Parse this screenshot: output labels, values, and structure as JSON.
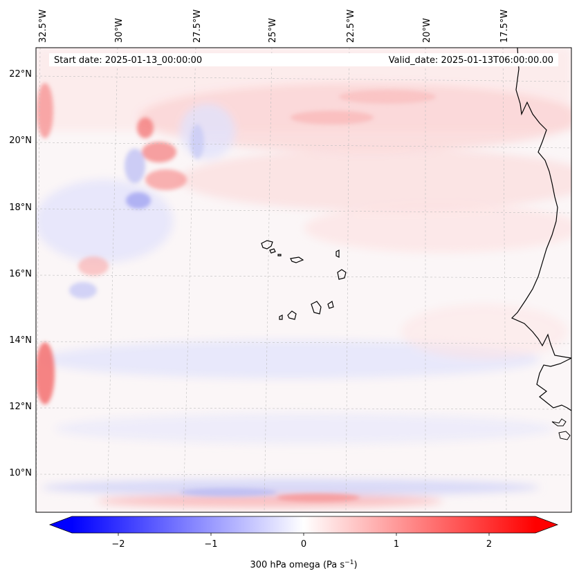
{
  "header": {
    "start_date": "Start date: 2025-01-13_00:00:00",
    "valid_date": "Valid_date: 2025-01-13T06:00:00.00"
  },
  "map": {
    "lon_labels": [
      "32.5°W",
      "30°W",
      "27.5°W",
      "25°W",
      "22.5°W",
      "20°W",
      "17.5°W"
    ],
    "lat_labels": [
      "22°N",
      "20°N",
      "18°N",
      "16°N",
      "14°N",
      "12°N",
      "10°N"
    ],
    "coastline": true,
    "gridlines": true
  },
  "colorbar": {
    "ticks": [
      "−2",
      "−1",
      "0",
      "1",
      "2"
    ],
    "label": "300 hPa omega (Pa s",
    "label_sup": "−1",
    "label_end": ")",
    "colormap": "bwr",
    "min_color": "#0000ff",
    "mid_color": "#ffffff",
    "max_color": "#ff0000"
  }
}
